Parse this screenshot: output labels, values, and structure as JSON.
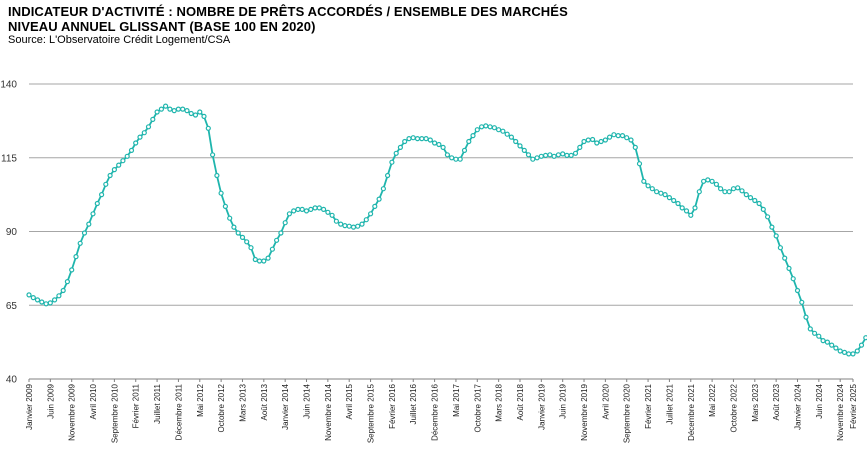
{
  "title": "INDICATEUR D'ACTIVITÉ : NOMBRE DE PRÊTS ACCORDÉS / ENSEMBLE DES MARCHÉS",
  "subtitle": "NIVEAU ANNUEL GLISSANT (BASE 100 EN 2020)",
  "source": "Source: L'Observatoire Crédit Logement/CSA",
  "colors": {
    "line": "#1fb5ad",
    "grid": "#a6a6a6",
    "marker_fill": "#ffffff"
  },
  "chart_data": {
    "type": "line",
    "title": "INDICATEUR D'ACTIVITÉ : NOMBRE DE PRÊTS ACCORDÉS / ENSEMBLE DES MARCHÉS",
    "subtitle": "NIVEAU ANNUEL GLISSANT (BASE 100 EN 2020)",
    "xlabel": "",
    "ylabel": "",
    "ylim": [
      40,
      140
    ],
    "yticks": [
      40,
      65,
      90,
      115,
      140
    ],
    "grid": "horizontal",
    "legend": "none",
    "xlim": [
      "2009-01",
      "2025-02"
    ],
    "x_tick_labels": [
      {
        "date": "2009-01",
        "label": "Janvier 2009"
      },
      {
        "date": "2009-06",
        "label": "Juin 2009"
      },
      {
        "date": "2009-11",
        "label": "Novembre 2009"
      },
      {
        "date": "2010-04",
        "label": "Avril 2010"
      },
      {
        "date": "2010-09",
        "label": "Septembre 2010"
      },
      {
        "date": "2011-02",
        "label": "Février 2011"
      },
      {
        "date": "2011-07",
        "label": "Juillet 2011"
      },
      {
        "date": "2011-12",
        "label": "Décembre 2011"
      },
      {
        "date": "2012-05",
        "label": "Mai 2012"
      },
      {
        "date": "2012-10",
        "label": "Octobre 2012"
      },
      {
        "date": "2013-03",
        "label": "Mars 2013"
      },
      {
        "date": "2013-08",
        "label": "Août 2013"
      },
      {
        "date": "2014-01",
        "label": "Janvier 2014"
      },
      {
        "date": "2014-06",
        "label": "Juin 2014"
      },
      {
        "date": "2014-11",
        "label": "Novembre 2014"
      },
      {
        "date": "2015-04",
        "label": "Avril 2015"
      },
      {
        "date": "2015-09",
        "label": "Septembre 2015"
      },
      {
        "date": "2016-02",
        "label": "Février 2016"
      },
      {
        "date": "2016-07",
        "label": "Juillet 2016"
      },
      {
        "date": "2016-12",
        "label": "Décembre 2016"
      },
      {
        "date": "2017-05",
        "label": "Mai 2017"
      },
      {
        "date": "2017-10",
        "label": "Octobre 2017"
      },
      {
        "date": "2018-03",
        "label": "Mars 2018"
      },
      {
        "date": "2018-08",
        "label": "Août 2018"
      },
      {
        "date": "2019-01",
        "label": "Janvier 2019"
      },
      {
        "date": "2019-06",
        "label": "Juin 2019"
      },
      {
        "date": "2019-11",
        "label": "Novembre 2019"
      },
      {
        "date": "2020-04",
        "label": "Avril 2020"
      },
      {
        "date": "2020-09",
        "label": "Septembre 2020"
      },
      {
        "date": "2021-02",
        "label": "Février 2021"
      },
      {
        "date": "2021-07",
        "label": "Juillet 2021"
      },
      {
        "date": "2021-12",
        "label": "Décembre 2021"
      },
      {
        "date": "2022-05",
        "label": "Mai 2022"
      },
      {
        "date": "2022-10",
        "label": "Octobre 2022"
      },
      {
        "date": "2023-03",
        "label": "Mars 2023"
      },
      {
        "date": "2023-08",
        "label": "Août 2023"
      },
      {
        "date": "2024-01",
        "label": "Janvier 2024"
      },
      {
        "date": "2024-06",
        "label": "Juin 2024"
      },
      {
        "date": "2024-11",
        "label": "Novembre 2024"
      },
      {
        "date": "2025-02",
        "label": "Février 2025"
      }
    ],
    "series": [
      {
        "start": "2009-01",
        "frequency": "monthly",
        "values": [
          68.5,
          67.6,
          66.8,
          66.1,
          65.5,
          65.8,
          66.8,
          68.2,
          70.0,
          73.0,
          77.0,
          81.5,
          86.0,
          89.5,
          92.5,
          96.0,
          99.5,
          102.5,
          106.0,
          109.0,
          111.0,
          112.5,
          114.0,
          115.5,
          117.5,
          120.0,
          122.0,
          123.5,
          125.5,
          128.0,
          130.5,
          131.5,
          132.5,
          131.5,
          131.0,
          131.5,
          131.5,
          131.0,
          130.0,
          129.5,
          130.5,
          129.0,
          125.0,
          116.0,
          109.0,
          103.0,
          98.5,
          94.5,
          91.5,
          89.5,
          88.0,
          86.5,
          84.5,
          80.5,
          80.0,
          80.0,
          81.0,
          84.0,
          87.0,
          89.5,
          93.0,
          96.0,
          97.0,
          97.5,
          97.5,
          97.0,
          97.5,
          98.0,
          98.0,
          97.5,
          96.5,
          95.5,
          93.5,
          92.5,
          92.0,
          91.8,
          91.5,
          91.8,
          92.5,
          94.0,
          96.0,
          98.5,
          101.0,
          104.5,
          109.0,
          113.5,
          116.5,
          118.5,
          120.5,
          121.5,
          121.8,
          121.5,
          121.5,
          121.5,
          121.0,
          120.0,
          119.5,
          118.5,
          116.0,
          115.0,
          114.5,
          114.5,
          117.5,
          120.5,
          122.5,
          124.5,
          125.5,
          125.8,
          125.5,
          125.2,
          124.5,
          124.0,
          123.0,
          122.0,
          120.5,
          119.0,
          117.5,
          116.0,
          114.5,
          115.0,
          115.5,
          115.8,
          116.0,
          115.5,
          116.0,
          116.3,
          115.8,
          115.8,
          116.5,
          118.5,
          120.5,
          121.0,
          121.2,
          120.0,
          120.5,
          121.0,
          122.0,
          122.8,
          122.5,
          122.5,
          121.8,
          121.0,
          118.5,
          113.0,
          107.0,
          105.5,
          104.5,
          103.5,
          103.0,
          102.5,
          101.5,
          100.5,
          99.5,
          98.0,
          97.0,
          95.5,
          98.0,
          103.5,
          107.0,
          107.5,
          107.0,
          106.0,
          104.5,
          103.5,
          103.5,
          104.5,
          104.8,
          103.8,
          102.5,
          101.5,
          100.5,
          99.5,
          97.5,
          95.0,
          91.5,
          88.5,
          84.5,
          81.0,
          77.5,
          74.0,
          70.0,
          66.0,
          61.0,
          57.0,
          55.5,
          54.5,
          53.0,
          52.5,
          51.5,
          50.5,
          49.5,
          49.0,
          48.5,
          48.5,
          49.5,
          51.5,
          54.0,
          55.5,
          56.5,
          57.5,
          59.5,
          61.5,
          62.8,
          63.0,
          62.5,
          63.2
        ]
      }
    ]
  }
}
